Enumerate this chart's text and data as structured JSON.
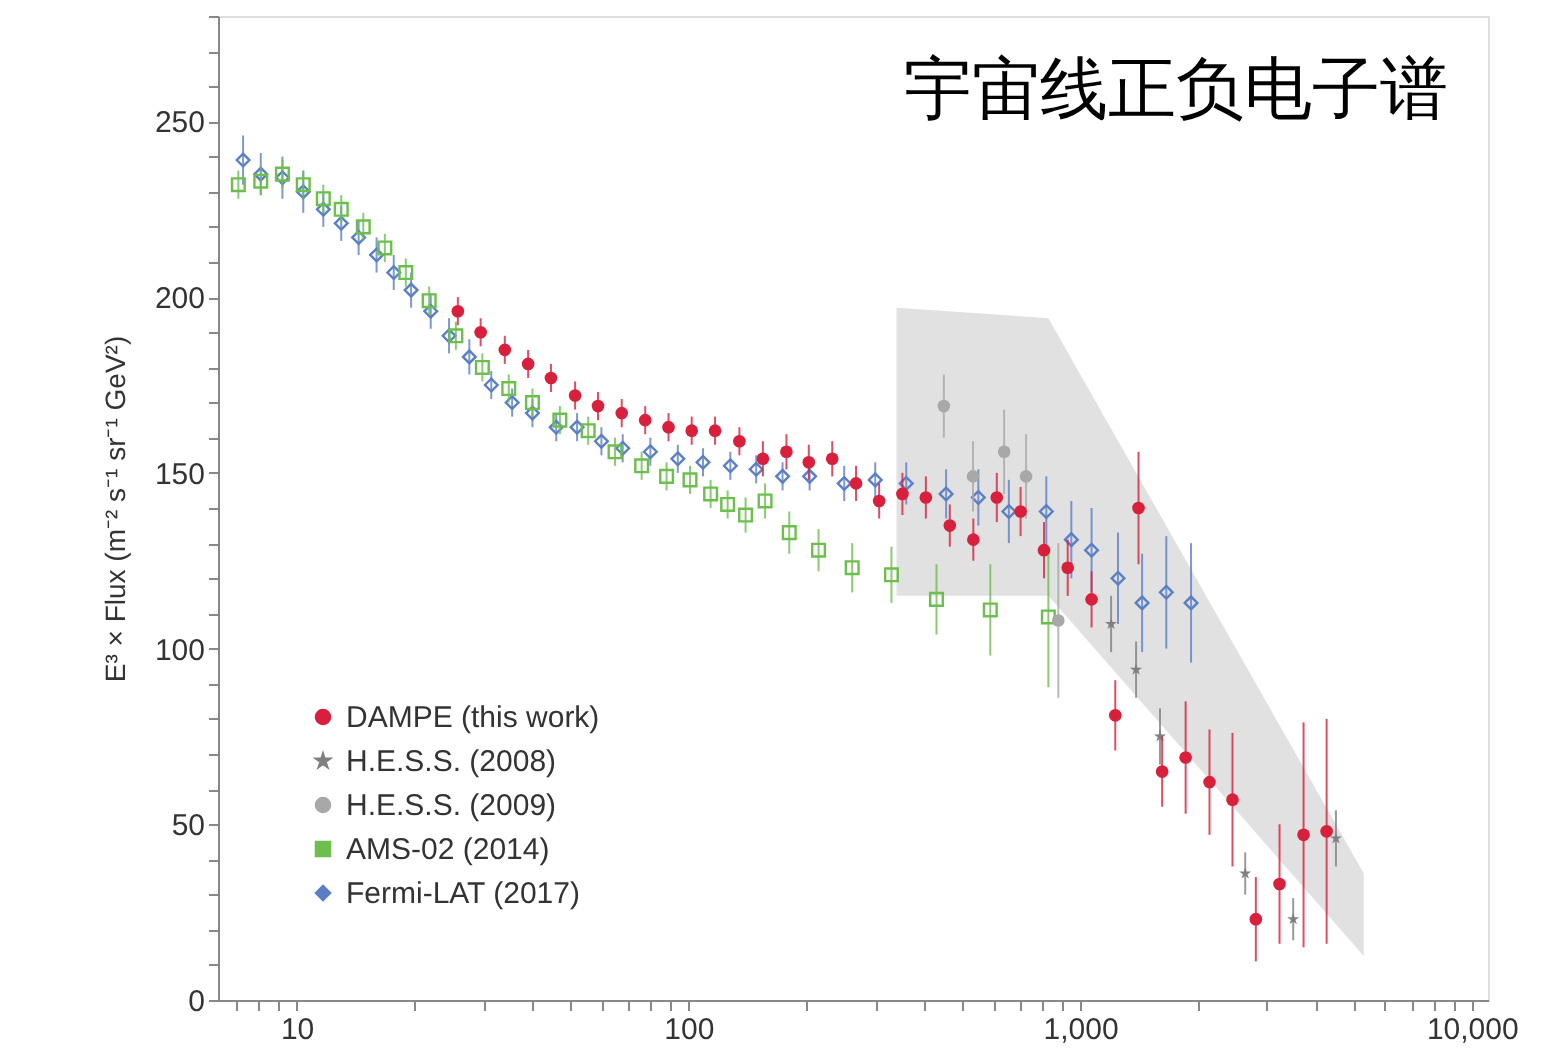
{
  "chart_data": {
    "type": "scatter",
    "title": "宇宙线正负电子谱",
    "ylabel": "E³ × Flux (m⁻² s⁻¹ sr⁻¹ GeV²)",
    "log": "x",
    "legend": "bottom left",
    "grid": false,
    "xlim": [
      6.3,
      11000
    ],
    "xticks": [
      {
        "value": 7,
        "label": null
      },
      {
        "value": 8,
        "label": null
      },
      {
        "value": 9,
        "label": null
      },
      {
        "value": 10,
        "label": "10"
      },
      {
        "value": 20,
        "label": null
      },
      {
        "value": 30,
        "label": null
      },
      {
        "value": 40,
        "label": null
      },
      {
        "value": 50,
        "label": null
      },
      {
        "value": 60,
        "label": null
      },
      {
        "value": 70,
        "label": null
      },
      {
        "value": 80,
        "label": null
      },
      {
        "value": 90,
        "label": null
      },
      {
        "value": 100,
        "label": "100"
      },
      {
        "value": 200,
        "label": null
      },
      {
        "value": 300,
        "label": null
      },
      {
        "value": 400,
        "label": null
      },
      {
        "value": 500,
        "label": null
      },
      {
        "value": 600,
        "label": null
      },
      {
        "value": 700,
        "label": null
      },
      {
        "value": 800,
        "label": null
      },
      {
        "value": 900,
        "label": null
      },
      {
        "value": 1000,
        "label": "1,000"
      },
      {
        "value": 2000,
        "label": null
      },
      {
        "value": 3000,
        "label": null
      },
      {
        "value": 4000,
        "label": null
      },
      {
        "value": 5000,
        "label": null
      },
      {
        "value": 6000,
        "label": null
      },
      {
        "value": 7000,
        "label": null
      },
      {
        "value": 8000,
        "label": null
      },
      {
        "value": 9000,
        "label": null
      },
      {
        "value": 10000,
        "label": "10,000"
      }
    ],
    "ylim": [
      0,
      280
    ],
    "yticks": [
      0,
      {
        "value": 10,
        "label": null
      },
      {
        "value": 20,
        "label": null
      },
      {
        "value": 30,
        "label": null
      },
      {
        "value": 40,
        "label": null
      },
      50,
      {
        "value": 60,
        "label": null
      },
      {
        "value": 70,
        "label": null
      },
      {
        "value": 80,
        "label": null
      },
      {
        "value": 90,
        "label": null
      },
      100,
      {
        "value": 110,
        "label": null
      },
      {
        "value": 120,
        "label": null
      },
      {
        "value": 130,
        "label": null
      },
      {
        "value": 140,
        "label": null
      },
      150,
      {
        "value": 160,
        "label": null
      },
      {
        "value": 170,
        "label": null
      },
      {
        "value": 180,
        "label": null
      },
      {
        "value": 190,
        "label": null
      },
      200,
      {
        "value": 210,
        "label": null
      },
      {
        "value": 220,
        "label": null
      },
      {
        "value": 230,
        "label": null
      },
      {
        "value": 240,
        "label": null
      },
      250,
      {
        "value": 260,
        "label": null
      },
      {
        "value": 270,
        "label": null
      },
      {
        "value": 280,
        "label": null
      }
    ],
    "series": [
      {
        "name": "DAMPE (this work)",
        "color": "#d8203c",
        "marker": "circle",
        "x": [
          25.8,
          29.5,
          34,
          39,
          44.6,
          51.4,
          58.8,
          67.6,
          77.6,
          89,
          102,
          117,
          135,
          155,
          178,
          203,
          233,
          268,
          307,
          352,
          404,
          465,
          534,
          613,
          705,
          809,
          930,
          1070,
          1230,
          1410,
          1620,
          1860,
          2140,
          2450,
          2810,
          3230,
          3720,
          4260
        ],
        "values": [
          196,
          190,
          185,
          181,
          177,
          172,
          169,
          167,
          165,
          163,
          162,
          162,
          159,
          154,
          156,
          153,
          154,
          147,
          142,
          144,
          143,
          135,
          131,
          143,
          139,
          128,
          123,
          114,
          81,
          140,
          65,
          69,
          62,
          57,
          23,
          33,
          47,
          48
        ],
        "errors": [
          4,
          4,
          4,
          4,
          4,
          4,
          4,
          4,
          4,
          4,
          4,
          4,
          4,
          5,
          5,
          5,
          5,
          5,
          5,
          6,
          6,
          6,
          6,
          7,
          7,
          8,
          8,
          8,
          10,
          16,
          10,
          16,
          15,
          19,
          12,
          17,
          32,
          32
        ]
      },
      {
        "name": "H.E.S.S. (2008)",
        "color": "#808080",
        "marker": "star",
        "x": [
          1200,
          1390,
          1600,
          2640,
          3500,
          4500
        ],
        "values": [
          107,
          94,
          75,
          36,
          23,
          46
        ],
        "errors": [
          8,
          8,
          8,
          6,
          6,
          8
        ]
      },
      {
        "name": "H.E.S.S. (2009)",
        "color": "#a8a8a8",
        "marker": "circle",
        "x": [
          449,
          533,
          640,
          728,
          880
        ],
        "values": [
          169,
          149,
          156,
          149,
          108
        ],
        "errors": [
          9,
          10,
          12,
          12,
          22
        ]
      },
      {
        "name": "AMS-02 (2014)",
        "color": "#6cbf4c",
        "marker": "square",
        "x": [
          7.1,
          8.1,
          9.2,
          10.4,
          11.7,
          13,
          14.8,
          16.8,
          19,
          21.8,
          25.5,
          29.8,
          34.8,
          40,
          47,
          55.5,
          65,
          76,
          88,
          101,
          114,
          126,
          140,
          157,
          181,
          215,
          262,
          330,
          430,
          590,
          830
        ],
        "values": [
          232,
          233,
          235,
          232,
          228,
          225,
          220,
          214,
          207,
          199,
          189,
          180,
          174,
          170,
          165,
          162,
          156,
          152,
          149,
          148,
          144,
          141,
          138,
          142,
          133,
          128,
          123,
          121,
          114,
          111,
          109
        ],
        "errors": [
          4,
          4,
          4,
          4,
          4,
          4,
          4,
          4,
          4,
          4,
          4,
          4,
          4,
          4,
          4,
          4,
          4,
          4,
          4,
          4,
          4,
          4,
          5,
          5,
          6,
          6,
          7,
          8,
          10,
          13,
          20
        ]
      },
      {
        "name": "Fermi-LAT (2017)",
        "color": "#5b7fc6",
        "marker": "diamond",
        "x": [
          7.3,
          8.1,
          9.2,
          10.4,
          11.7,
          13,
          14.4,
          16,
          17.7,
          19.6,
          22,
          24.5,
          27.6,
          31.4,
          35.5,
          40,
          46,
          52,
          60,
          68,
          80,
          94,
          109,
          128,
          149,
          174,
          204,
          250,
          300,
          360,
          455,
          550,
          658,
          820,
          950,
          1070,
          1250,
          1440,
          1660,
          1920
        ],
        "values": [
          239,
          235,
          234,
          230,
          225,
          221,
          217,
          212,
          207,
          202,
          196,
          189,
          183,
          175,
          170,
          167,
          163,
          163,
          159,
          157,
          156,
          154,
          153,
          152,
          151,
          149,
          149,
          147,
          148,
          147,
          144,
          143,
          139,
          139,
          131,
          128,
          120,
          113,
          116,
          113
        ],
        "errors": [
          7,
          6,
          6,
          6,
          5,
          5,
          5,
          5,
          5,
          5,
          5,
          5,
          5,
          4,
          4,
          4,
          4,
          4,
          4,
          4,
          4,
          4,
          4,
          4,
          4,
          4,
          4,
          5,
          5,
          6,
          7,
          8,
          9,
          10,
          11,
          12,
          13,
          14,
          16,
          17
        ]
      },
      {
        "type": "area",
        "color": "#dcdcdc",
        "x": [
          340,
          830,
          5300
        ],
        "values": [
          null,
          null,
          null
        ],
        "upper": [
          197,
          194,
          36
        ],
        "lower": [
          115,
          115,
          12.5
        ]
      }
    ]
  }
}
